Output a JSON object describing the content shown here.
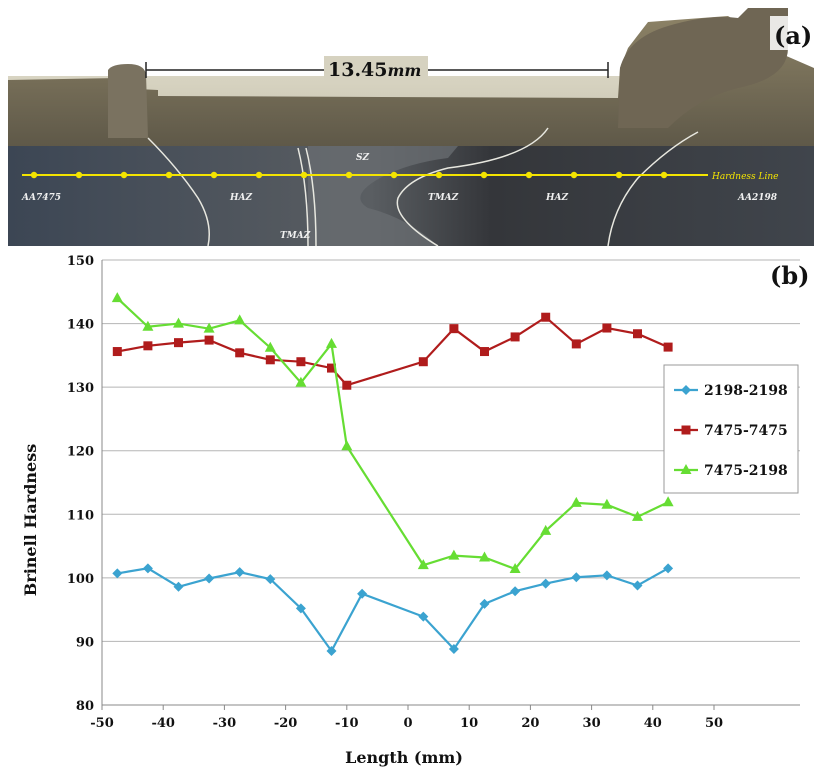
{
  "panel_a": {
    "label": "(a)",
    "dimension": "13.45",
    "dimension_unit": "mm",
    "zone_labels": [
      "AA7475",
      "HAZ",
      "TMAZ",
      "SZ",
      "TMAZ",
      "HAZ",
      "AA2198"
    ],
    "hardness_line_label": "Hardness Line"
  },
  "panel_b": {
    "label": "(b)"
  },
  "chart_data": {
    "type": "line",
    "xlabel": "Length (mm)",
    "ylabel": "Brinell Hardness",
    "xlim": [
      -50,
      50
    ],
    "ylim": [
      80,
      150
    ],
    "xticks": [
      -50,
      -40,
      -30,
      -20,
      -10,
      0,
      10,
      20,
      30,
      40,
      50
    ],
    "yticks": [
      80,
      90,
      100,
      110,
      120,
      130,
      140,
      150
    ],
    "grid": "horizontal",
    "legend_position": "right",
    "series": [
      {
        "name": "2198-2198",
        "color": "#3ba3d0",
        "marker": "diamond",
        "points": [
          [
            -47.5,
            100.7
          ],
          [
            -42.5,
            101.5
          ],
          [
            -37.5,
            98.6
          ],
          [
            -32.5,
            99.9
          ],
          [
            -27.5,
            100.9
          ],
          [
            -22.5,
            99.8
          ],
          [
            -17.5,
            95.2
          ],
          [
            -12.5,
            88.5
          ],
          [
            -7.5,
            97.5
          ],
          [
            2.5,
            93.9
          ],
          [
            7.5,
            88.8
          ],
          [
            12.5,
            95.9
          ],
          [
            17.5,
            97.9
          ],
          [
            22.5,
            99.1
          ],
          [
            27.5,
            100.1
          ],
          [
            32.5,
            100.4
          ],
          [
            37.5,
            98.8
          ],
          [
            42.5,
            101.5
          ]
        ]
      },
      {
        "name": "7475-7475",
        "color": "#b01c1c",
        "marker": "square",
        "points": [
          [
            -47.5,
            135.6
          ],
          [
            -42.5,
            136.5
          ],
          [
            -37.5,
            137.0
          ],
          [
            -32.5,
            137.4
          ],
          [
            -27.5,
            135.4
          ],
          [
            -22.5,
            134.3
          ],
          [
            -17.5,
            134.0
          ],
          [
            -12.5,
            133.0
          ],
          [
            -10,
            130.3
          ],
          [
            2.5,
            134.0
          ],
          [
            7.5,
            139.2
          ],
          [
            12.5,
            135.6
          ],
          [
            17.5,
            137.9
          ],
          [
            22.5,
            141.0
          ],
          [
            27.5,
            136.8
          ],
          [
            32.5,
            139.3
          ],
          [
            37.5,
            138.4
          ],
          [
            42.5,
            136.3
          ]
        ]
      },
      {
        "name": "7475-2198",
        "color": "#66dd33",
        "marker": "triangle",
        "points": [
          [
            -47.5,
            144.0
          ],
          [
            -42.5,
            139.5
          ],
          [
            -37.5,
            140.0
          ],
          [
            -32.5,
            139.2
          ],
          [
            -27.5,
            140.5
          ],
          [
            -22.5,
            136.2
          ],
          [
            -17.5,
            130.7
          ],
          [
            -12.5,
            136.8
          ],
          [
            -10,
            120.7
          ],
          [
            2.5,
            102.0
          ],
          [
            7.5,
            103.5
          ],
          [
            12.5,
            103.2
          ],
          [
            17.5,
            101.4
          ],
          [
            22.5,
            107.4
          ],
          [
            27.5,
            111.8
          ],
          [
            32.5,
            111.5
          ],
          [
            37.5,
            109.6
          ],
          [
            42.5,
            111.9
          ]
        ]
      }
    ]
  }
}
